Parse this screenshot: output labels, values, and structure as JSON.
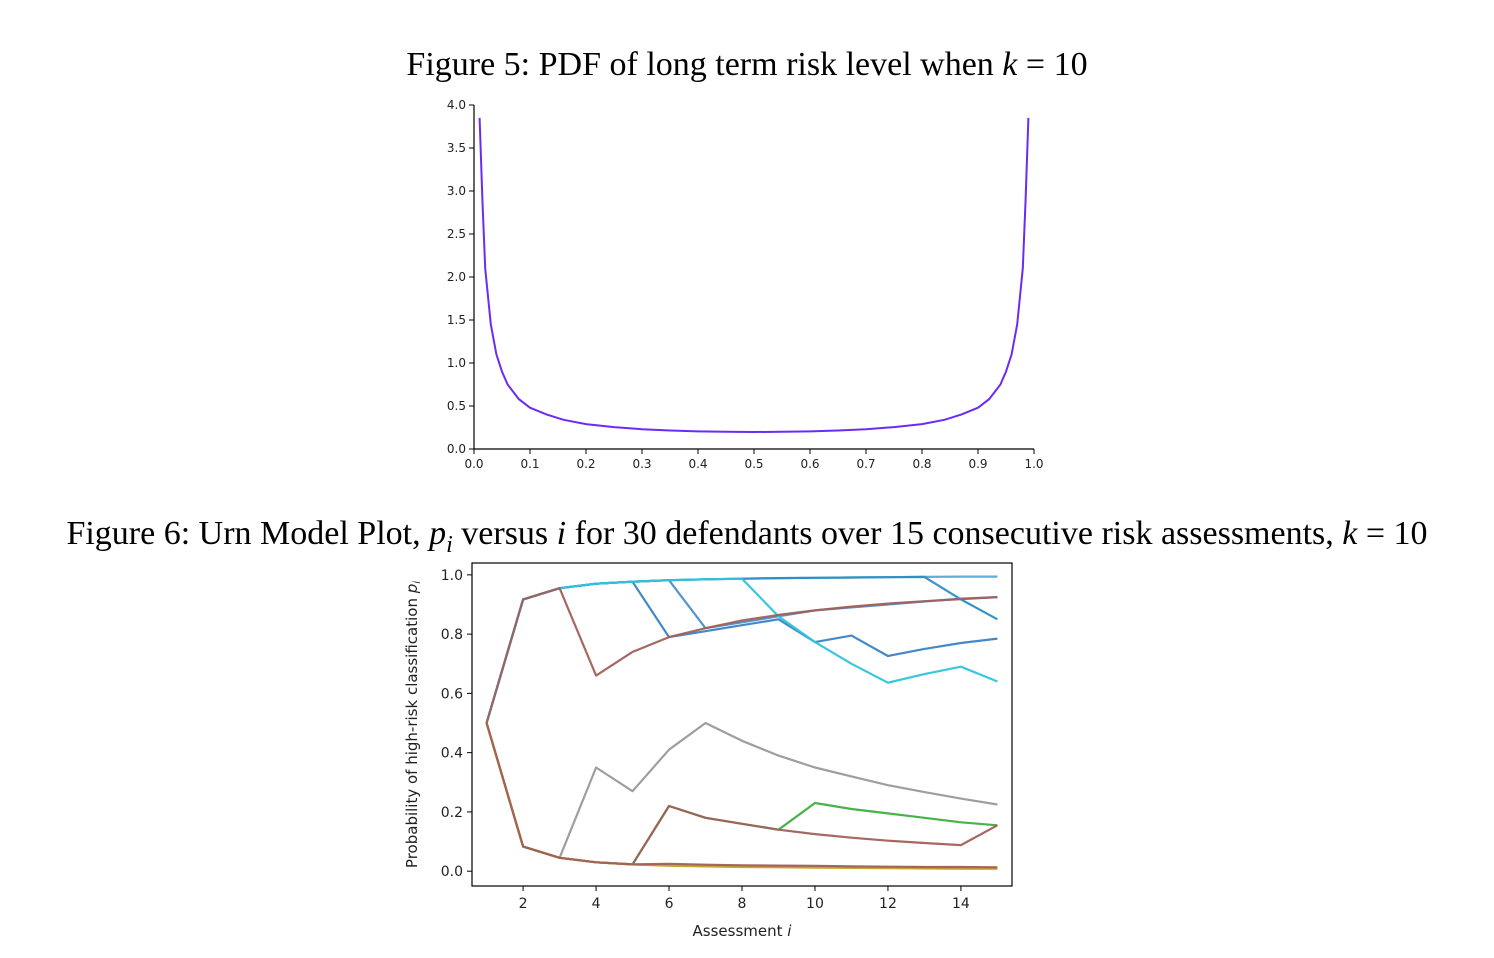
{
  "figures": [
    {
      "caption": {
        "prefix": "Figure 5: PDF of long term risk level when ",
        "var": "k",
        "suffix": " = 10"
      }
    },
    {
      "caption": {
        "prefix": "Figure 6: Urn Model Plot, ",
        "var1": "p",
        "sub1": "i",
        "mid1": " versus ",
        "var2": "i",
        "mid2": " for 30 defendants over 15 consecutive risk assessments, ",
        "var3": "k",
        "suffix": " = 10"
      }
    }
  ],
  "chart_data": [
    {
      "type": "line",
      "title": "",
      "xlabel": "",
      "ylabel": "",
      "xlim": [
        0.0,
        1.0
      ],
      "ylim": [
        0.0,
        4.0
      ],
      "xticks": [
        "0.0",
        "0.1",
        "0.2",
        "0.3",
        "0.4",
        "0.5",
        "0.6",
        "0.7",
        "0.8",
        "0.9",
        "1.0"
      ],
      "yticks": [
        "0.0",
        "0.5",
        "1.0",
        "1.5",
        "2.0",
        "2.5",
        "3.0",
        "3.5",
        "4.0"
      ],
      "grid": false,
      "series": [
        {
          "color": "#6a2cf5",
          "x": [
            0.01,
            0.015,
            0.02,
            0.03,
            0.04,
            0.05,
            0.06,
            0.08,
            0.1,
            0.13,
            0.16,
            0.2,
            0.25,
            0.3,
            0.35,
            0.4,
            0.45,
            0.5,
            0.55,
            0.6,
            0.65,
            0.7,
            0.75,
            0.8,
            0.84,
            0.87,
            0.9,
            0.92,
            0.94,
            0.95,
            0.96,
            0.97,
            0.98,
            0.985,
            0.99
          ],
          "y": [
            3.85,
            2.9,
            2.1,
            1.45,
            1.1,
            0.9,
            0.75,
            0.58,
            0.48,
            0.4,
            0.34,
            0.29,
            0.255,
            0.23,
            0.215,
            0.205,
            0.2,
            0.198,
            0.2,
            0.205,
            0.215,
            0.23,
            0.255,
            0.29,
            0.34,
            0.4,
            0.48,
            0.58,
            0.75,
            0.9,
            1.1,
            1.45,
            2.1,
            2.9,
            3.85
          ]
        }
      ]
    },
    {
      "type": "line",
      "title": "",
      "xlabel": "Assessment",
      "xlabel_var": "i",
      "ylabel": "Probability of high-risk classification",
      "ylabel_var": "p",
      "ylabel_sub": "i",
      "xlim": [
        0.6,
        15.4
      ],
      "ylim": [
        -0.05,
        1.04
      ],
      "xticks": [
        2,
        4,
        6,
        8,
        10,
        12,
        14
      ],
      "yticks": [
        "0.0",
        "0.2",
        "0.4",
        "0.6",
        "0.8",
        "1.0"
      ],
      "grid": false,
      "x": [
        1,
        2,
        3,
        4,
        5,
        6,
        7,
        8,
        9,
        10,
        11,
        12,
        13,
        14,
        15
      ],
      "series": [
        {
          "color": "#5aa9d6",
          "values": [
            0.5,
            0.917,
            0.955,
            0.97,
            0.977,
            0.982,
            0.985,
            0.987,
            0.989,
            0.99,
            0.991,
            0.992,
            0.993,
            0.994,
            0.994
          ]
        },
        {
          "color": "#2c8ec4",
          "values": [
            0.5,
            0.917,
            0.955,
            0.97,
            0.977,
            0.982,
            0.985,
            0.987,
            0.989,
            0.99,
            0.991,
            0.992,
            0.993,
            0.917,
            0.85
          ]
        },
        {
          "color": "#3b82c4",
          "values": [
            0.5,
            0.917,
            0.955,
            0.97,
            0.977,
            0.79,
            0.81,
            0.83,
            0.85,
            0.773,
            0.795,
            0.726,
            0.75,
            0.77,
            0.785
          ]
        },
        {
          "color": "#4a90c8",
          "values": [
            0.5,
            0.917,
            0.955,
            0.97,
            0.977,
            0.982,
            0.82,
            0.84,
            0.86,
            0.88,
            0.89,
            0.9,
            0.91,
            0.92,
            0.925
          ]
        },
        {
          "color": "#2ec4dc",
          "values": [
            0.5,
            0.917,
            0.955,
            0.97,
            0.977,
            0.982,
            0.985,
            0.987,
            0.86,
            0.773,
            0.7,
            0.636,
            0.665,
            0.69,
            0.64
          ]
        },
        {
          "color": "#a0605a",
          "values": [
            0.5,
            0.917,
            0.955,
            0.66,
            0.74,
            0.79,
            0.82,
            0.846,
            0.865,
            0.88,
            0.893,
            0.903,
            0.911,
            0.918,
            0.925
          ]
        },
        {
          "color": "#999999",
          "values": [
            0.5,
            0.083,
            0.045,
            0.35,
            0.27,
            0.41,
            0.5,
            0.44,
            0.39,
            0.35,
            0.32,
            0.29,
            0.267,
            0.245,
            0.225
          ]
        },
        {
          "color": "#3fae3f",
          "values": [
            0.5,
            0.083,
            0.045,
            0.03,
            0.023,
            0.22,
            0.18,
            0.16,
            0.14,
            0.23,
            0.21,
            0.195,
            0.18,
            0.165,
            0.155
          ]
        },
        {
          "color": "#a0605a",
          "values": [
            0.5,
            0.083,
            0.045,
            0.03,
            0.023,
            0.22,
            0.18,
            0.16,
            0.14,
            0.125,
            0.113,
            0.103,
            0.095,
            0.088,
            0.155
          ]
        },
        {
          "color": "#c9a227",
          "values": [
            0.5,
            0.083,
            0.045,
            0.03,
            0.023,
            0.018,
            0.016,
            0.014,
            0.013,
            0.012,
            0.011,
            0.01,
            0.009,
            0.008,
            0.008
          ]
        },
        {
          "color": "#c9a227",
          "values": [
            0.5,
            0.083,
            0.045,
            0.03,
            0.023,
            0.02,
            0.018,
            0.017,
            0.016,
            0.015,
            0.014,
            0.013,
            0.013,
            0.012,
            0.012
          ]
        },
        {
          "color": "#a0605a",
          "values": [
            0.5,
            0.083,
            0.045,
            0.03,
            0.023,
            0.025,
            0.022,
            0.02,
            0.019,
            0.018,
            0.016,
            0.015,
            0.014,
            0.014,
            0.013
          ]
        }
      ]
    }
  ]
}
